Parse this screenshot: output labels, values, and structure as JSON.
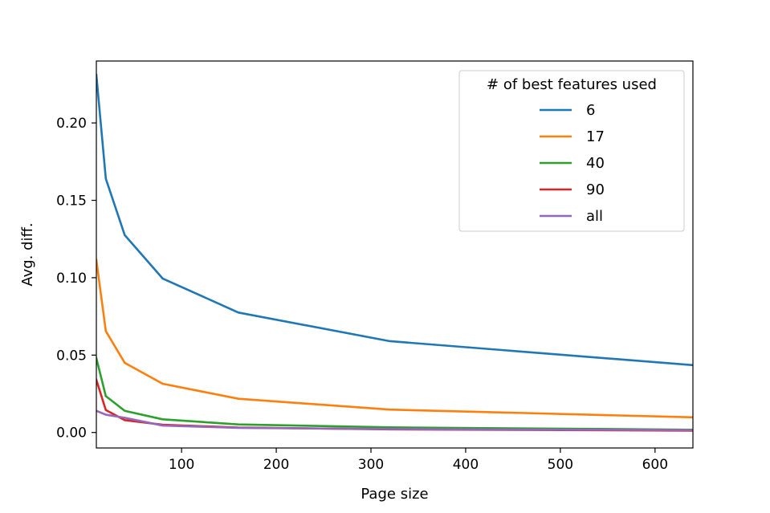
{
  "chart_data": {
    "type": "line",
    "title": "",
    "xlabel": "Page size",
    "ylabel": "Avg. diff.",
    "xlim": [
      10,
      640
    ],
    "ylim": [
      -0.01,
      0.24
    ],
    "xticks": [
      100,
      200,
      300,
      400,
      500,
      600
    ],
    "xtick_labels": [
      "100",
      "200",
      "300",
      "400",
      "500",
      "600"
    ],
    "yticks": [
      0.0,
      0.05,
      0.1,
      0.15,
      0.2
    ],
    "ytick_labels": [
      "0.00",
      "0.05",
      "0.10",
      "0.15",
      "0.20"
    ],
    "grid": false,
    "legend": {
      "title": "# of best features used",
      "placement": "top-right"
    },
    "x": [
      10,
      20,
      40,
      80,
      160,
      320,
      640
    ],
    "series": [
      {
        "name": "6",
        "color": "#1f77b4",
        "values": [
          0.231,
          0.164,
          0.1275,
          0.0995,
          0.0775,
          0.059,
          0.0435
        ]
      },
      {
        "name": "17",
        "color": "#ff7f0e",
        "values": [
          0.1115,
          0.0655,
          0.045,
          0.0315,
          0.0218,
          0.0148,
          0.0098
        ]
      },
      {
        "name": "40",
        "color": "#2ca02c",
        "values": [
          0.048,
          0.0235,
          0.014,
          0.0085,
          0.0052,
          0.0033,
          0.0018
        ]
      },
      {
        "name": "90",
        "color": "#d62728",
        "values": [
          0.034,
          0.0145,
          0.008,
          0.005,
          0.0032,
          0.002,
          0.0012
        ]
      },
      {
        "name": "all",
        "color": "#9467bd",
        "values": [
          0.014,
          0.0115,
          0.0095,
          0.0045,
          0.003,
          0.0022,
          0.0015
        ]
      }
    ]
  }
}
